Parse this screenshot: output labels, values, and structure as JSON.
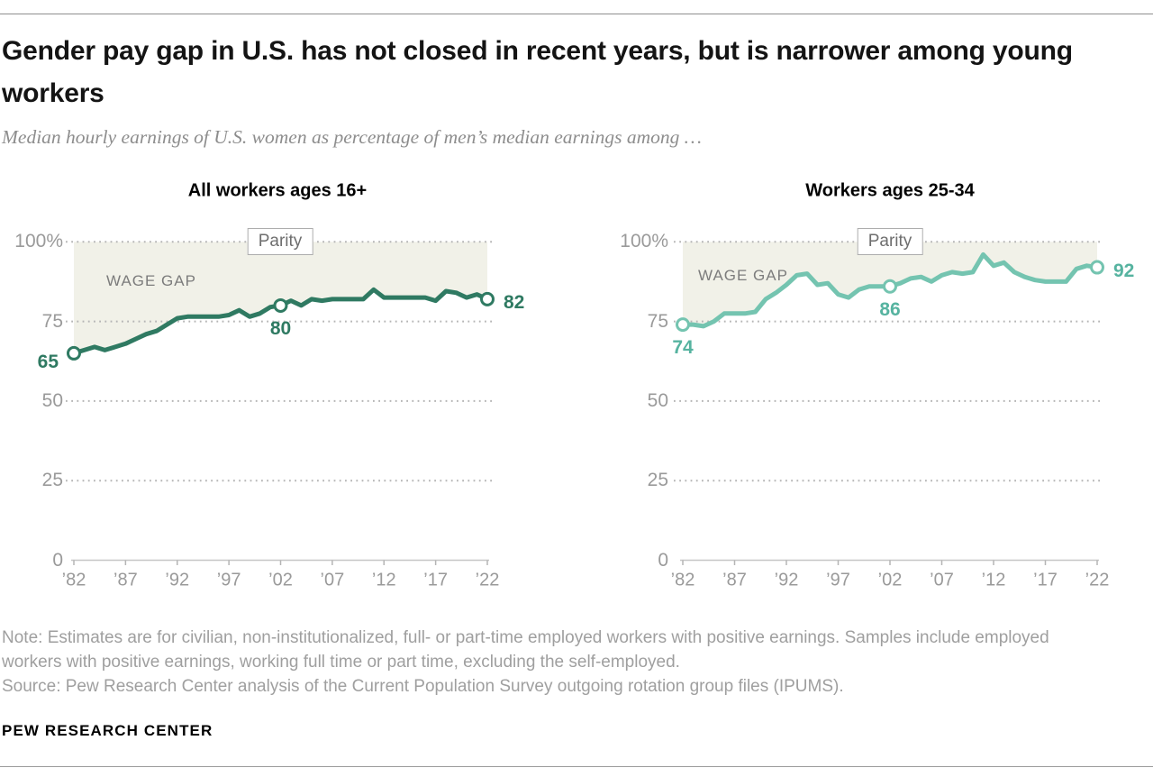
{
  "header": {
    "title": "Gender pay gap in U.S. has not closed in recent years, but is narrower among young workers",
    "subtitle": "Median hourly earnings of U.S. women as percentage of men’s median earnings among …"
  },
  "chart_data": [
    {
      "type": "line",
      "title": "All workers ages 16+",
      "ylim": [
        0,
        100
      ],
      "grid": "dotted-horizontal-at-25-50-75-100",
      "legend": "none",
      "yticks": [
        {
          "value": 100,
          "label": "100%"
        },
        {
          "value": 75,
          "label": "75"
        },
        {
          "value": 50,
          "label": "50"
        },
        {
          "value": 25,
          "label": "25"
        },
        {
          "value": 0,
          "label": "0"
        }
      ],
      "xticks": [
        {
          "year": 1982,
          "label": "’82"
        },
        {
          "year": 1987,
          "label": "’87"
        },
        {
          "year": 1992,
          "label": "’92"
        },
        {
          "year": 1997,
          "label": "’97"
        },
        {
          "year": 2002,
          "label": "’02"
        },
        {
          "year": 2007,
          "label": "’07"
        },
        {
          "year": 2012,
          "label": "’12"
        },
        {
          "year": 2017,
          "label": "’17"
        },
        {
          "year": 2022,
          "label": "’22"
        }
      ],
      "x": [
        1982,
        1983,
        1984,
        1985,
        1986,
        1987,
        1988,
        1989,
        1990,
        1991,
        1992,
        1993,
        1994,
        1995,
        1996,
        1997,
        1998,
        1999,
        2000,
        2001,
        2002,
        2003,
        2004,
        2005,
        2006,
        2007,
        2008,
        2009,
        2010,
        2011,
        2012,
        2013,
        2014,
        2015,
        2016,
        2017,
        2018,
        2019,
        2020,
        2021,
        2022
      ],
      "series": [
        {
          "name": "Women’s median hourly earnings as % of men’s, workers ages 16+",
          "values": [
            65,
            66,
            67,
            66,
            67,
            68,
            69.5,
            71,
            72,
            74,
            76,
            76.5,
            76.5,
            76.5,
            76.5,
            77,
            78.5,
            76.5,
            77.5,
            79.5,
            80,
            81.5,
            80,
            82,
            81.5,
            82,
            82,
            82,
            82,
            85,
            82.5,
            82.5,
            82.5,
            82.5,
            82.5,
            81.5,
            84.5,
            84,
            82.5,
            83.5,
            82
          ]
        }
      ],
      "markers": [
        {
          "year": 1982,
          "value": 65,
          "label": "65",
          "position": "left"
        },
        {
          "year": 2002,
          "value": 80,
          "label": "80",
          "position": "below"
        },
        {
          "year": 2022,
          "value": 82,
          "label": "82",
          "position": "right"
        }
      ],
      "annotations": {
        "parity_label": "Parity",
        "wage_gap_label": "WAGE GAP"
      },
      "colors": {
        "line": "#2F7A62",
        "marker_label": "#2F7A62",
        "fill": "#F1F1E8"
      }
    },
    {
      "type": "line",
      "title": "Workers ages 25-34",
      "ylim": [
        0,
        100
      ],
      "grid": "dotted-horizontal-at-25-50-75-100",
      "legend": "none",
      "yticks": [
        {
          "value": 100,
          "label": "100%"
        },
        {
          "value": 75,
          "label": "75"
        },
        {
          "value": 50,
          "label": "50"
        },
        {
          "value": 25,
          "label": "25"
        },
        {
          "value": 0,
          "label": "0"
        }
      ],
      "xticks": [
        {
          "year": 1982,
          "label": "’82"
        },
        {
          "year": 1987,
          "label": "’87"
        },
        {
          "year": 1992,
          "label": "’92"
        },
        {
          "year": 1997,
          "label": "’97"
        },
        {
          "year": 2002,
          "label": "’02"
        },
        {
          "year": 2007,
          "label": "’07"
        },
        {
          "year": 2012,
          "label": "’12"
        },
        {
          "year": 2017,
          "label": "’17"
        },
        {
          "year": 2022,
          "label": "’22"
        }
      ],
      "x": [
        1982,
        1983,
        1984,
        1985,
        1986,
        1987,
        1988,
        1989,
        1990,
        1991,
        1992,
        1993,
        1994,
        1995,
        1996,
        1997,
        1998,
        1999,
        2000,
        2001,
        2002,
        2003,
        2004,
        2005,
        2006,
        2007,
        2008,
        2009,
        2010,
        2011,
        2012,
        2013,
        2014,
        2015,
        2016,
        2017,
        2018,
        2019,
        2020,
        2021,
        2022
      ],
      "series": [
        {
          "name": "Women’s median hourly earnings as % of men’s, workers ages 25-34",
          "values": [
            74,
            74,
            73.5,
            75,
            77.5,
            77.5,
            77.5,
            78,
            82,
            84,
            86.5,
            89.5,
            90,
            86.5,
            87,
            83.5,
            82.5,
            85,
            86,
            86,
            86,
            87,
            88.5,
            89,
            87.5,
            89.5,
            90.5,
            90,
            90.5,
            96,
            92.5,
            93.5,
            90.5,
            89,
            88,
            87.5,
            87.5,
            87.5,
            91.5,
            92.5,
            92
          ]
        }
      ],
      "markers": [
        {
          "year": 1982,
          "value": 74,
          "label": "74",
          "position": "below"
        },
        {
          "year": 2002,
          "value": 86,
          "label": "86",
          "position": "below"
        },
        {
          "year": 2022,
          "value": 92,
          "label": "92",
          "position": "right"
        }
      ],
      "annotations": {
        "parity_label": "Parity",
        "wage_gap_label": "WAGE GAP"
      },
      "colors": {
        "line": "#74C4B0",
        "marker_label": "#56B3A0",
        "fill": "#F1F1E8"
      }
    }
  ],
  "footer": {
    "note": "Note: Estimates are for civilian, non-institutionalized, full- or part-time employed workers with positive earnings. Samples include employed workers with positive earnings, working full time or part time, excluding the self-employed.",
    "source": "Source: Pew Research Center analysis of the Current Population Survey outgoing rotation group files (IPUMS).",
    "brand": "PEW RESEARCH CENTER"
  }
}
